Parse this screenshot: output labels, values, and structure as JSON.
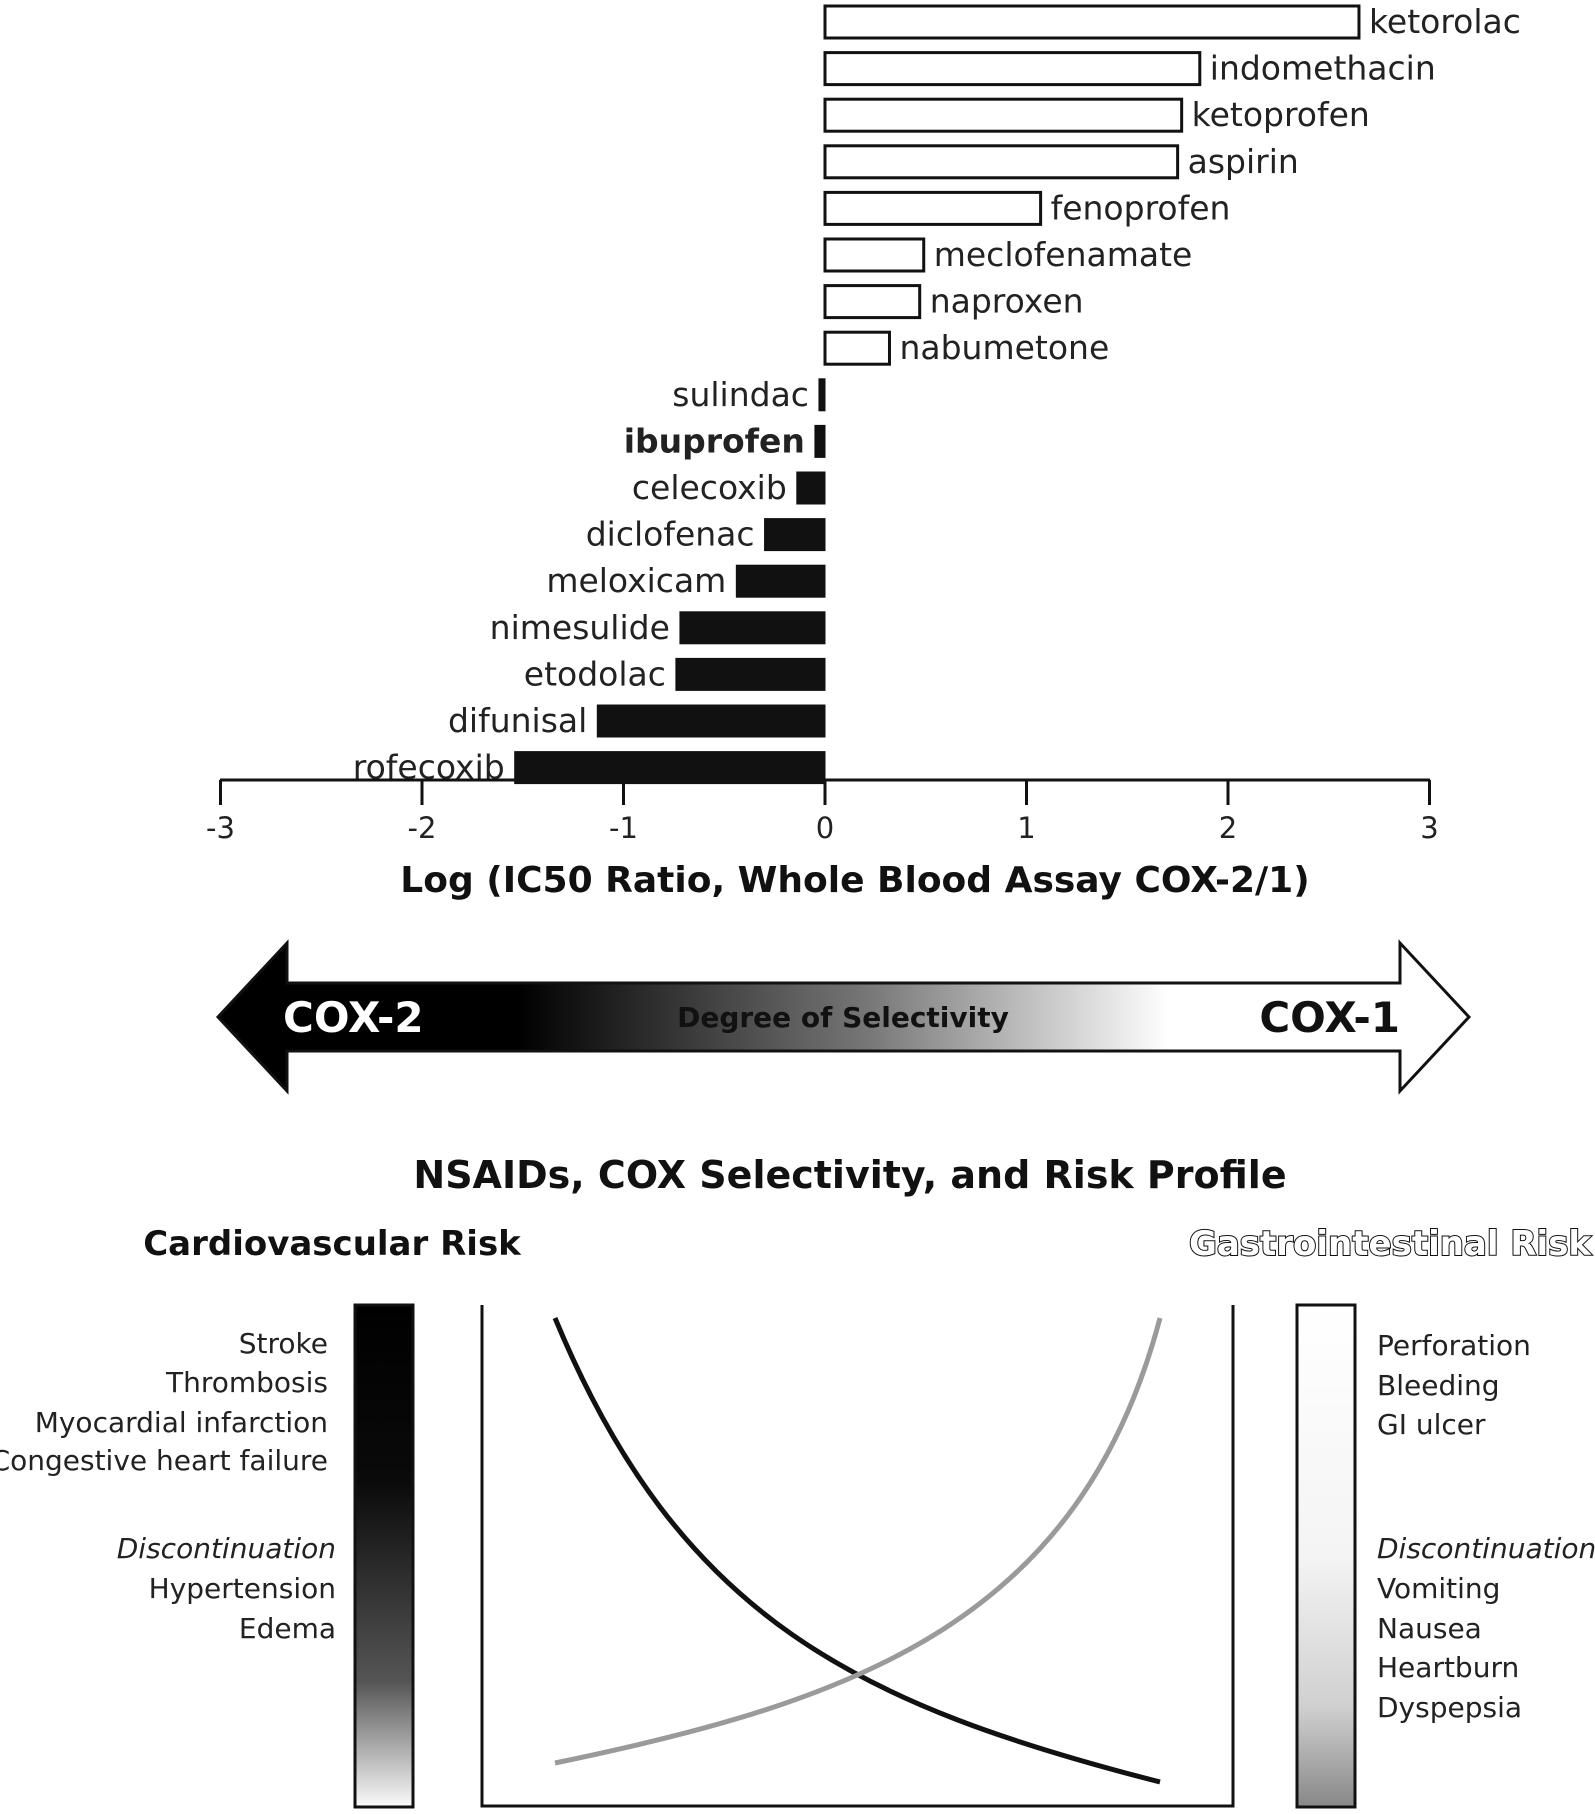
{
  "chart_data": {
    "type": "bar",
    "orientation": "horizontal",
    "xlabel": "Log (IC50 Ratio, Whole Blood Assay COX-2/1)",
    "xlim": [
      -3,
      3
    ],
    "xticks": [
      "-3",
      "-2",
      "-1",
      "0",
      "1",
      "2",
      "3"
    ],
    "tick_values": [
      -3,
      -2,
      -1,
      0,
      1,
      2,
      3
    ],
    "categories": [
      "ketorolac",
      "indomethacin",
      "ketoprofen",
      "aspirin",
      "fenoprofen",
      "meclofenamate",
      "naproxen",
      "nabumetone",
      "sulindac",
      "ibuprofen",
      "celecoxib",
      "diclofenac",
      "meloxicam",
      "nimesulide",
      "etodolac",
      "difunisal",
      "rofecoxib"
    ],
    "values": [
      2.65,
      1.86,
      1.77,
      1.75,
      1.07,
      0.49,
      0.47,
      0.32,
      -0.03,
      -0.05,
      -0.14,
      -0.3,
      -0.44,
      -0.72,
      -0.74,
      -1.13,
      -1.54
    ],
    "bar_styles": [
      "open",
      "open",
      "open",
      "open",
      "open",
      "open",
      "open",
      "open",
      "filled",
      "filled",
      "filled",
      "filled",
      "filled",
      "filled",
      "filled",
      "filled",
      "filled"
    ],
    "emphasized": "ibuprofen"
  },
  "selectivity_arrow": {
    "left": "COX-2",
    "right": "COX-1",
    "center": "Degree of Selectivity"
  },
  "risk_profile": {
    "title": "NSAIDs, COX Selectivity, and Risk Profile",
    "cardiovascular": {
      "heading": "Cardiovascular Risk",
      "serious": [
        "Stroke",
        "Thrombosis",
        "Myocardial infarction",
        "Congestive heart failure"
      ],
      "discontinuation_label": "Discontinuation",
      "discontinuation": [
        "Hypertension",
        "Edema"
      ]
    },
    "gastrointestinal": {
      "heading": "Gastrointestinal Risk",
      "serious": [
        "Perforation",
        "Bleeding",
        "GI ulcer"
      ],
      "discontinuation_label": "Discontinuation",
      "discontinuation": [
        "Vomiting",
        "Nausea",
        "Heartburn",
        "Dyspepsia"
      ]
    }
  },
  "colors": {
    "ink": "#111111",
    "gi_curve": "#9a9a9a"
  }
}
